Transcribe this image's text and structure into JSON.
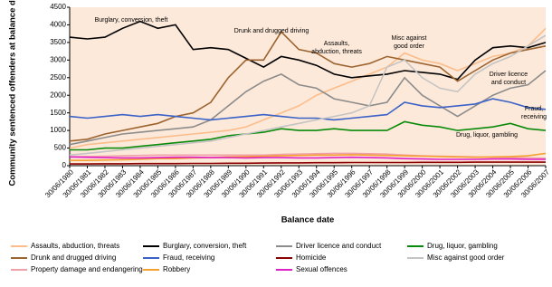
{
  "chart_data": {
    "type": "line",
    "y_label": "Community sentenced offenders at balance date",
    "x_label": "Balance date",
    "categories": [
      "30/06/1980",
      "30/06/1981",
      "30/06/1982",
      "30/06/1983",
      "30/06/1984",
      "30/06/1985",
      "30/06/1986",
      "30/06/1987",
      "30/06/1988",
      "30/06/1989",
      "30/06/1990",
      "30/06/1991",
      "30/06/1992",
      "30/06/1993",
      "30/06/1994",
      "30/06/1995",
      "30/06/1996",
      "30/06/1997",
      "30/06/1998",
      "30/06/1999",
      "30/06/2000",
      "30/06/2001",
      "30/06/2002",
      "30/06/2003",
      "30/06/2004",
      "30/06/2005",
      "30/06/2006",
      "30/06/2007"
    ],
    "ylim": [
      0,
      4500
    ],
    "yticks": [
      0,
      500,
      1000,
      1500,
      2000,
      2500,
      3000,
      3500,
      4000,
      4500
    ],
    "series": [
      {
        "name": "Assaults, abduction, threats",
        "color": "#fbbd8c",
        "values": [
          500,
          600,
          650,
          700,
          750,
          800,
          850,
          900,
          950,
          1000,
          1100,
          1300,
          1500,
          1700,
          2000,
          2200,
          2400,
          2600,
          2800,
          3200,
          3000,
          2900,
          2700,
          2900,
          3100,
          3200,
          3400,
          3900
        ]
      },
      {
        "name": "Burglary, conversion, theft",
        "color": "#000000",
        "values": [
          3650,
          3600,
          3650,
          3900,
          4100,
          3900,
          4000,
          3300,
          3350,
          3300,
          3050,
          2800,
          3100,
          3000,
          2850,
          2600,
          2500,
          2550,
          2600,
          2700,
          2650,
          2600,
          2450,
          3000,
          3350,
          3400,
          3350,
          3500
        ]
      },
      {
        "name": "Driver licence and conduct",
        "color": "#8c8c8c",
        "values": [
          600,
          700,
          800,
          900,
          950,
          1000,
          1050,
          1100,
          1300,
          1700,
          2100,
          2400,
          2600,
          2300,
          2200,
          1900,
          1800,
          1700,
          1800,
          2500,
          2000,
          1700,
          1400,
          1700,
          2000,
          2200,
          2300,
          2700
        ]
      },
      {
        "name": "Drug, liquor, gambling",
        "color": "#0a8a0a",
        "values": [
          450,
          450,
          500,
          500,
          550,
          600,
          650,
          700,
          750,
          850,
          900,
          950,
          1050,
          1000,
          1000,
          1050,
          1000,
          1000,
          1000,
          1250,
          1150,
          1100,
          1000,
          1050,
          1100,
          1200,
          1050,
          1000
        ]
      },
      {
        "name": "Drunk and drugged driving",
        "color": "#9c6430",
        "values": [
          700,
          750,
          900,
          1000,
          1100,
          1200,
          1400,
          1500,
          1800,
          2500,
          3000,
          3000,
          3800,
          3300,
          3200,
          2900,
          2800,
          2900,
          3100,
          3000,
          2900,
          2800,
          2400,
          2700,
          3000,
          3200,
          3300,
          3400
        ]
      },
      {
        "name": "Fraud, receiving",
        "color": "#3a62c8",
        "values": [
          1400,
          1350,
          1400,
          1450,
          1400,
          1450,
          1400,
          1350,
          1300,
          1350,
          1400,
          1450,
          1400,
          1350,
          1350,
          1300,
          1350,
          1400,
          1450,
          1800,
          1700,
          1650,
          1700,
          1750,
          1900,
          1800,
          1650,
          1600
        ]
      },
      {
        "name": "Homicide",
        "color": "#8b0000",
        "values": [
          50,
          50,
          55,
          55,
          60,
          60,
          60,
          65,
          65,
          70,
          70,
          75,
          80,
          80,
          85,
          85,
          90,
          90,
          90,
          90,
          95,
          95,
          95,
          100,
          100,
          100,
          100,
          100
        ]
      },
      {
        "name": "Misc against good order",
        "color": "#c4c4c4",
        "values": [
          300,
          350,
          400,
          450,
          500,
          550,
          600,
          650,
          700,
          800,
          900,
          1000,
          1100,
          1200,
          1300,
          1400,
          1500,
          1700,
          2800,
          3000,
          2500,
          2200,
          2100,
          2600,
          2900,
          3100,
          3400,
          3700
        ]
      },
      {
        "name": "Property damage and endangering",
        "color": "#f0a0a8",
        "values": [
          250,
          260,
          270,
          280,
          290,
          300,
          300,
          300,
          300,
          300,
          300,
          300,
          320,
          330,
          340,
          350,
          350,
          340,
          330,
          300,
          280,
          270,
          260,
          250,
          240,
          230,
          220,
          210
        ]
      },
      {
        "name": "Robbery",
        "color": "#f5a030",
        "values": [
          150,
          150,
          160,
          170,
          180,
          200,
          200,
          220,
          230,
          250,
          260,
          270,
          280,
          290,
          300,
          300,
          310,
          300,
          290,
          280,
          270,
          260,
          250,
          240,
          250,
          260,
          280,
          350
        ]
      },
      {
        "name": "Sexual offences",
        "color": "#e020c8",
        "values": [
          250,
          240,
          230,
          220,
          220,
          230,
          240,
          240,
          230,
          230,
          220,
          230,
          230,
          220,
          220,
          230,
          240,
          230,
          220,
          200,
          190,
          180,
          180,
          180,
          190,
          190,
          180,
          180
        ]
      }
    ],
    "annotations": [
      [
        "Burglary, conversion, theft"
      ],
      [
        "Drunk and drugged driving"
      ],
      [
        "Assaults,",
        "abduction, threats"
      ],
      [
        "Misc against",
        "good order"
      ],
      [
        "Driver licence",
        "and conduct"
      ],
      [
        "Fraud,",
        "receiving"
      ],
      [
        "Drug, liquor, gambling"
      ]
    ]
  }
}
